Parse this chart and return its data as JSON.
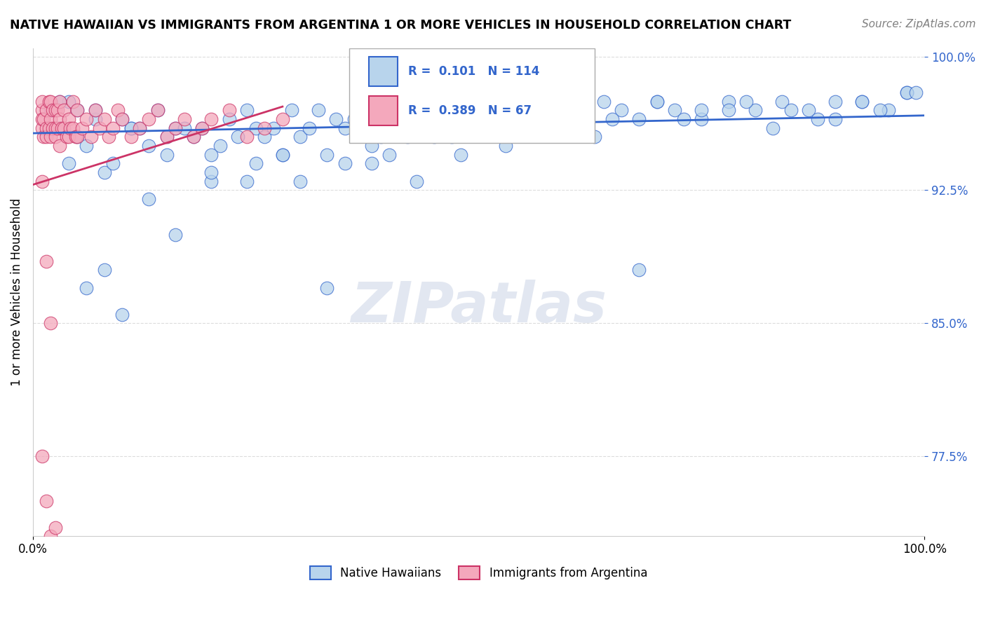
{
  "title": "NATIVE HAWAIIAN VS IMMIGRANTS FROM ARGENTINA 1 OR MORE VEHICLES IN HOUSEHOLD CORRELATION CHART",
  "source": "Source: ZipAtlas.com",
  "ylabel": "1 or more Vehicles in Household",
  "xlim": [
    0.0,
    1.0
  ],
  "ylim": [
    0.73,
    1.005
  ],
  "yticks": [
    0.775,
    0.85,
    0.925,
    1.0
  ],
  "ytick_labels": [
    "77.5%",
    "85.0%",
    "92.5%",
    "100.0%"
  ],
  "xticks": [
    0.0,
    1.0
  ],
  "xtick_labels": [
    "0.0%",
    "100.0%"
  ],
  "blue_R": 0.101,
  "blue_N": 114,
  "pink_R": 0.389,
  "pink_N": 67,
  "blue_color": "#b8d4ec",
  "pink_color": "#f4a8bc",
  "blue_line_color": "#3366cc",
  "pink_line_color": "#cc3366",
  "watermark": "ZIPatlas",
  "background_color": "#ffffff",
  "grid_color": "#dddddd",
  "blue_scatter_x": [
    0.02,
    0.03,
    0.04,
    0.05,
    0.05,
    0.06,
    0.07,
    0.08,
    0.09,
    0.1,
    0.11,
    0.12,
    0.13,
    0.14,
    0.15,
    0.16,
    0.17,
    0.18,
    0.19,
    0.2,
    0.21,
    0.22,
    0.23,
    0.24,
    0.25,
    0.26,
    0.27,
    0.28,
    0.29,
    0.3,
    0.31,
    0.32,
    0.33,
    0.34,
    0.35,
    0.36,
    0.37,
    0.38,
    0.39,
    0.4,
    0.41,
    0.42,
    0.43,
    0.44,
    0.45,
    0.46,
    0.47,
    0.48,
    0.49,
    0.5,
    0.52,
    0.54,
    0.56,
    0.58,
    0.6,
    0.62,
    0.64,
    0.66,
    0.68,
    0.7,
    0.72,
    0.75,
    0.78,
    0.81,
    0.84,
    0.87,
    0.9,
    0.93,
    0.96,
    0.98,
    0.04,
    0.06,
    0.08,
    0.1,
    0.13,
    0.16,
    0.2,
    0.24,
    0.28,
    0.33,
    0.38,
    0.43,
    0.48,
    0.53,
    0.58,
    0.63,
    0.68,
    0.73,
    0.78,
    0.83,
    0.88,
    0.93,
    0.98,
    0.03,
    0.07,
    0.11,
    0.15,
    0.2,
    0.25,
    0.3,
    0.35,
    0.4,
    0.45,
    0.5,
    0.55,
    0.6,
    0.65,
    0.7,
    0.75,
    0.8,
    0.85,
    0.9,
    0.95,
    0.99
  ],
  "blue_scatter_y": [
    0.97,
    0.96,
    0.975,
    0.955,
    0.97,
    0.95,
    0.965,
    0.935,
    0.94,
    0.965,
    0.96,
    0.96,
    0.95,
    0.97,
    0.945,
    0.96,
    0.96,
    0.955,
    0.96,
    0.93,
    0.95,
    0.965,
    0.955,
    0.97,
    0.96,
    0.955,
    0.96,
    0.945,
    0.97,
    0.955,
    0.96,
    0.97,
    0.945,
    0.965,
    0.96,
    0.965,
    0.97,
    0.95,
    0.955,
    0.965,
    0.97,
    0.955,
    0.97,
    0.96,
    0.965,
    0.97,
    0.955,
    0.97,
    0.96,
    0.965,
    0.97,
    0.96,
    0.975,
    0.97,
    0.965,
    0.97,
    0.975,
    0.97,
    0.965,
    0.975,
    0.97,
    0.965,
    0.975,
    0.97,
    0.975,
    0.97,
    0.965,
    0.975,
    0.97,
    0.98,
    0.94,
    0.87,
    0.88,
    0.855,
    0.92,
    0.9,
    0.935,
    0.93,
    0.945,
    0.87,
    0.94,
    0.93,
    0.945,
    0.95,
    0.96,
    0.955,
    0.88,
    0.965,
    0.97,
    0.96,
    0.965,
    0.975,
    0.98,
    0.975,
    0.97,
    0.96,
    0.955,
    0.945,
    0.94,
    0.93,
    0.94,
    0.945,
    0.955,
    0.96,
    0.965,
    0.97,
    0.965,
    0.975,
    0.97,
    0.975,
    0.97,
    0.975,
    0.97,
    0.98
  ],
  "pink_scatter_x": [
    0.01,
    0.01,
    0.01,
    0.01,
    0.012,
    0.012,
    0.015,
    0.015,
    0.015,
    0.018,
    0.018,
    0.02,
    0.02,
    0.02,
    0.022,
    0.022,
    0.025,
    0.025,
    0.025,
    0.028,
    0.028,
    0.03,
    0.03,
    0.03,
    0.032,
    0.035,
    0.035,
    0.038,
    0.04,
    0.04,
    0.042,
    0.045,
    0.045,
    0.048,
    0.05,
    0.05,
    0.055,
    0.06,
    0.065,
    0.07,
    0.075,
    0.08,
    0.085,
    0.09,
    0.095,
    0.1,
    0.11,
    0.12,
    0.13,
    0.14,
    0.15,
    0.16,
    0.17,
    0.18,
    0.19,
    0.2,
    0.22,
    0.24,
    0.26,
    0.28,
    0.01,
    0.015,
    0.02,
    0.01,
    0.015,
    0.02,
    0.025
  ],
  "pink_scatter_y": [
    0.97,
    0.975,
    0.96,
    0.965,
    0.955,
    0.965,
    0.96,
    0.955,
    0.97,
    0.96,
    0.975,
    0.965,
    0.955,
    0.975,
    0.96,
    0.97,
    0.96,
    0.97,
    0.955,
    0.96,
    0.97,
    0.965,
    0.95,
    0.975,
    0.96,
    0.96,
    0.97,
    0.955,
    0.955,
    0.965,
    0.96,
    0.96,
    0.975,
    0.955,
    0.955,
    0.97,
    0.96,
    0.965,
    0.955,
    0.97,
    0.96,
    0.965,
    0.955,
    0.96,
    0.97,
    0.965,
    0.955,
    0.96,
    0.965,
    0.97,
    0.955,
    0.96,
    0.965,
    0.955,
    0.96,
    0.965,
    0.97,
    0.955,
    0.96,
    0.965,
    0.93,
    0.885,
    0.85,
    0.775,
    0.75,
    0.73,
    0.735
  ]
}
